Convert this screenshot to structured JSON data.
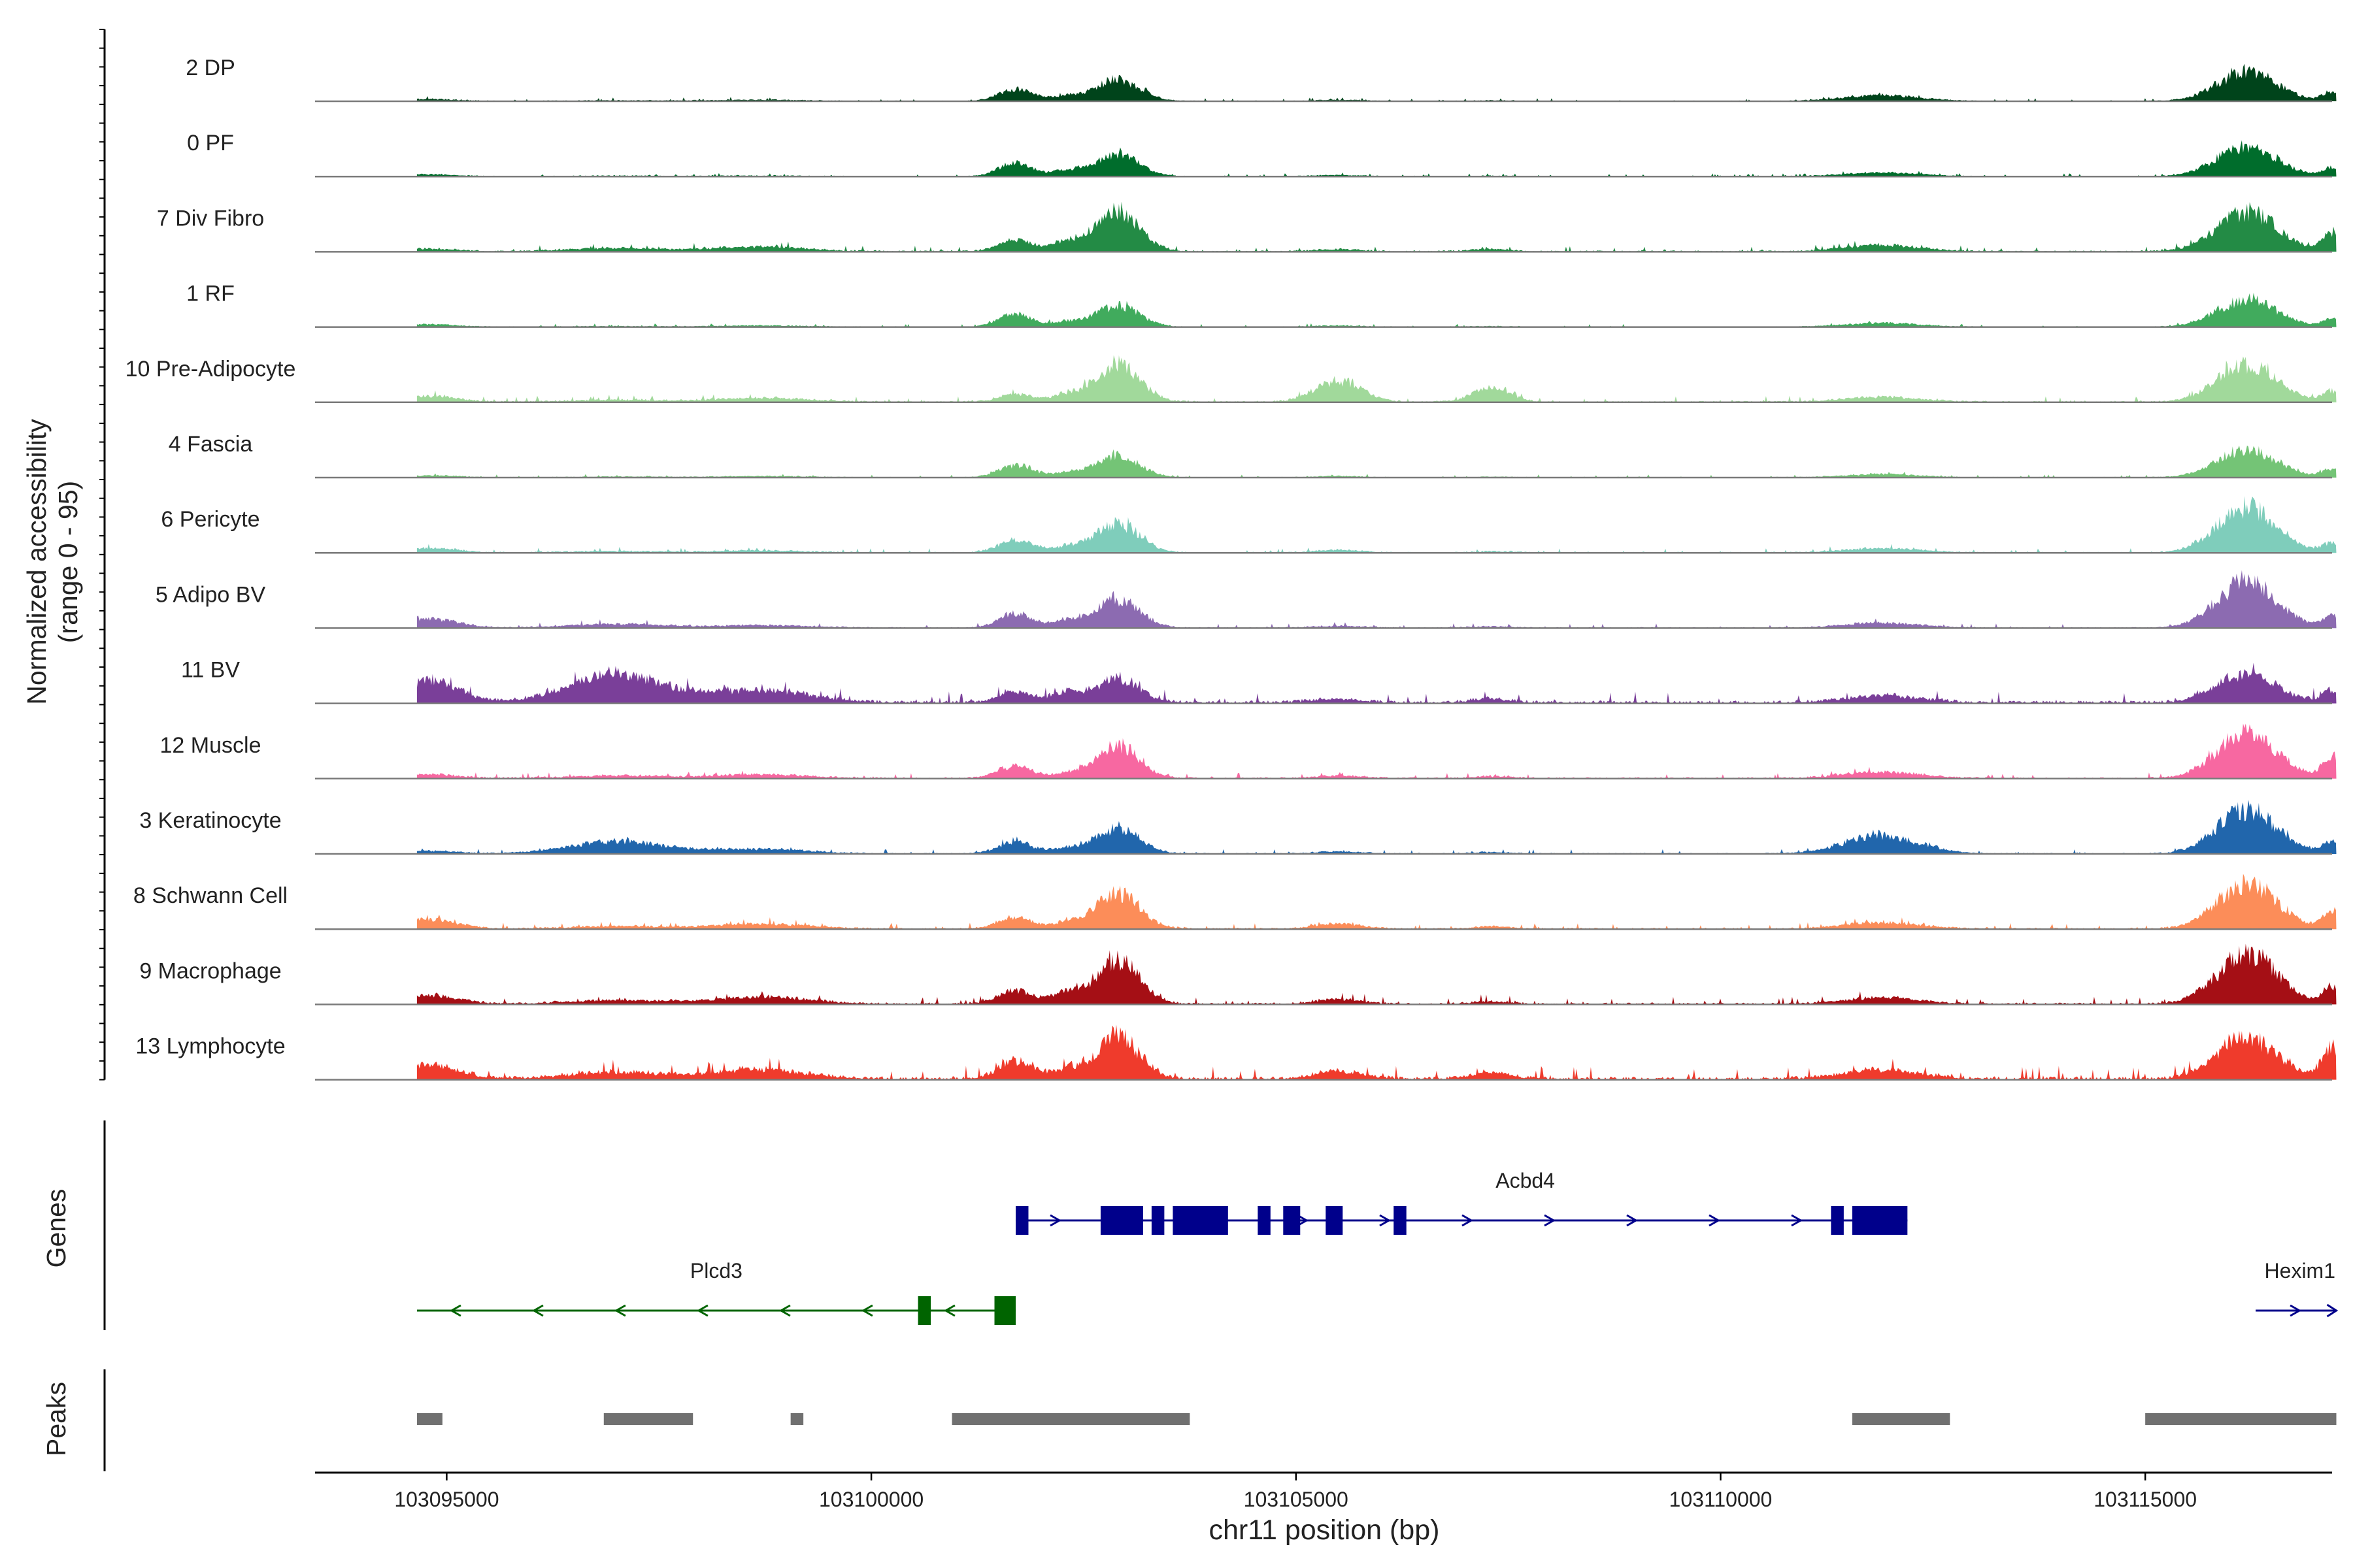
{
  "chart_data": {
    "type": "area",
    "title": "",
    "chromosome": "chr11",
    "xlabel": "chr11 position (bp)",
    "ylabel": "Normalized accessibility",
    "ylabel_sub": "(range 0 - 95)",
    "xlim": [
      103093450,
      103117200
    ],
    "ylim": [
      0,
      95
    ],
    "x_ticks": [
      103095000,
      103100000,
      103105000,
      103110000,
      103115000
    ],
    "x_tick_labels": [
      "103095000",
      "103100000",
      "103105000",
      "103110000",
      "103115000"
    ],
    "track_start": 103094650,
    "track_end": 103117250,
    "peak_centers": [
      103094800,
      103097000,
      103098700,
      103101700,
      103102300,
      103102900,
      103105500,
      103107300,
      103111900,
      103116200,
      103117200
    ],
    "series": [
      {
        "name": "2 DP",
        "color": "#00441b",
        "peak_heights": [
          3,
          1,
          2,
          18,
          7,
          34,
          2,
          1,
          9,
          45,
          14
        ],
        "noise": 2,
        "seed": 1
      },
      {
        "name": "0 PF",
        "color": "#006d2c",
        "peak_heights": [
          3,
          1,
          1,
          20,
          9,
          33,
          2,
          1,
          6,
          46,
          14
        ],
        "noise": 2,
        "seed": 2
      },
      {
        "name": "7 Div Fibro",
        "color": "#238b45",
        "peak_heights": [
          4,
          5,
          7,
          18,
          14,
          62,
          3,
          4,
          10,
          62,
          30
        ],
        "noise": 4,
        "seed": 3
      },
      {
        "name": "1 RF",
        "color": "#41ab5d",
        "peak_heights": [
          4,
          1,
          2,
          20,
          7,
          33,
          2,
          1,
          6,
          42,
          12
        ],
        "noise": 2,
        "seed": 4
      },
      {
        "name": "10 Pre-Adipocyte",
        "color": "#a1d99b",
        "peak_heights": [
          9,
          3,
          6,
          12,
          12,
          60,
          32,
          22,
          8,
          58,
          16
        ],
        "noise": 4,
        "seed": 5
      },
      {
        "name": "4 Fascia",
        "color": "#74c476",
        "peak_heights": [
          3,
          1,
          2,
          19,
          7,
          34,
          2,
          1,
          5,
          44,
          13
        ],
        "noise": 2,
        "seed": 6
      },
      {
        "name": "6 Pericyte",
        "color": "#7fcdbb",
        "peak_heights": [
          7,
          2,
          3,
          20,
          9,
          45,
          4,
          2,
          7,
          70,
          14
        ],
        "noise": 3,
        "seed": 7
      },
      {
        "name": "5 Adipo BV",
        "color": "#8c6bb1",
        "peak_heights": [
          14,
          6,
          4,
          22,
          11,
          44,
          3,
          2,
          8,
          72,
          19
        ],
        "noise": 3,
        "seed": 8
      },
      {
        "name": "11 BV",
        "color": "#7a3f99",
        "peak_heights": [
          35,
          45,
          20,
          17,
          16,
          37,
          6,
          6,
          11,
          44,
          19
        ],
        "noise": 8,
        "seed": 9
      },
      {
        "name": "12 Muscle",
        "color": "#f768a1",
        "peak_heights": [
          6,
          4,
          6,
          20,
          7,
          50,
          4,
          3,
          10,
          70,
          34
        ],
        "noise": 4,
        "seed": 10
      },
      {
        "name": "3 Keratinocyte",
        "color": "#2166ac",
        "peak_heights": [
          4,
          19,
          7,
          18,
          8,
          40,
          3,
          2,
          28,
          68,
          18
        ],
        "noise": 3,
        "seed": 11
      },
      {
        "name": "8 Schwann Cell",
        "color": "#fc8d59",
        "peak_heights": [
          14,
          4,
          8,
          18,
          9,
          56,
          8,
          4,
          10,
          70,
          24
        ],
        "noise": 4,
        "seed": 12
      },
      {
        "name": "9 Macrophage",
        "color": "#a50f15",
        "peak_heights": [
          14,
          6,
          11,
          22,
          16,
          68,
          7,
          4,
          10,
          78,
          26
        ],
        "noise": 5,
        "seed": 13
      },
      {
        "name": "13 Lymphocyte",
        "color": "#ef3b2c",
        "peak_heights": [
          22,
          10,
          14,
          28,
          14,
          66,
          12,
          10,
          14,
          64,
          48
        ],
        "noise": 9,
        "seed": 14
      }
    ],
    "genes_label": "Genes",
    "genes": [
      {
        "name": "Acbd4",
        "strand": "+",
        "color": "#00008b",
        "start": 103101700,
        "end": 103112200,
        "exons": [
          [
            103101700,
            103101850
          ],
          [
            103102700,
            103103200
          ],
          [
            103103300,
            103103450
          ],
          [
            103103550,
            103104200
          ],
          [
            103104550,
            103104700
          ],
          [
            103104850,
            103105050
          ],
          [
            103105350,
            103105550
          ],
          [
            103106150,
            103106300
          ],
          [
            103111300,
            103111450
          ],
          [
            103111550,
            103112200
          ]
        ]
      },
      {
        "name": "Plcd3",
        "strand": "-",
        "color": "#006400",
        "start": 103094650,
        "end": 103101700,
        "exons": [
          [
            103100550,
            103100700
          ],
          [
            103101450,
            103101700
          ]
        ]
      },
      {
        "name": "Hexim1",
        "strand": "+",
        "color": "#00008b",
        "start": 103116300,
        "end": 103117250,
        "exons": []
      }
    ],
    "peaks_label": "Peaks",
    "peaks": [
      [
        103094650,
        103094950
      ],
      [
        103096850,
        103097900
      ],
      [
        103099050,
        103099200
      ],
      [
        103100950,
        103103750
      ],
      [
        103111550,
        103112700
      ],
      [
        103115000,
        103117250
      ]
    ]
  }
}
